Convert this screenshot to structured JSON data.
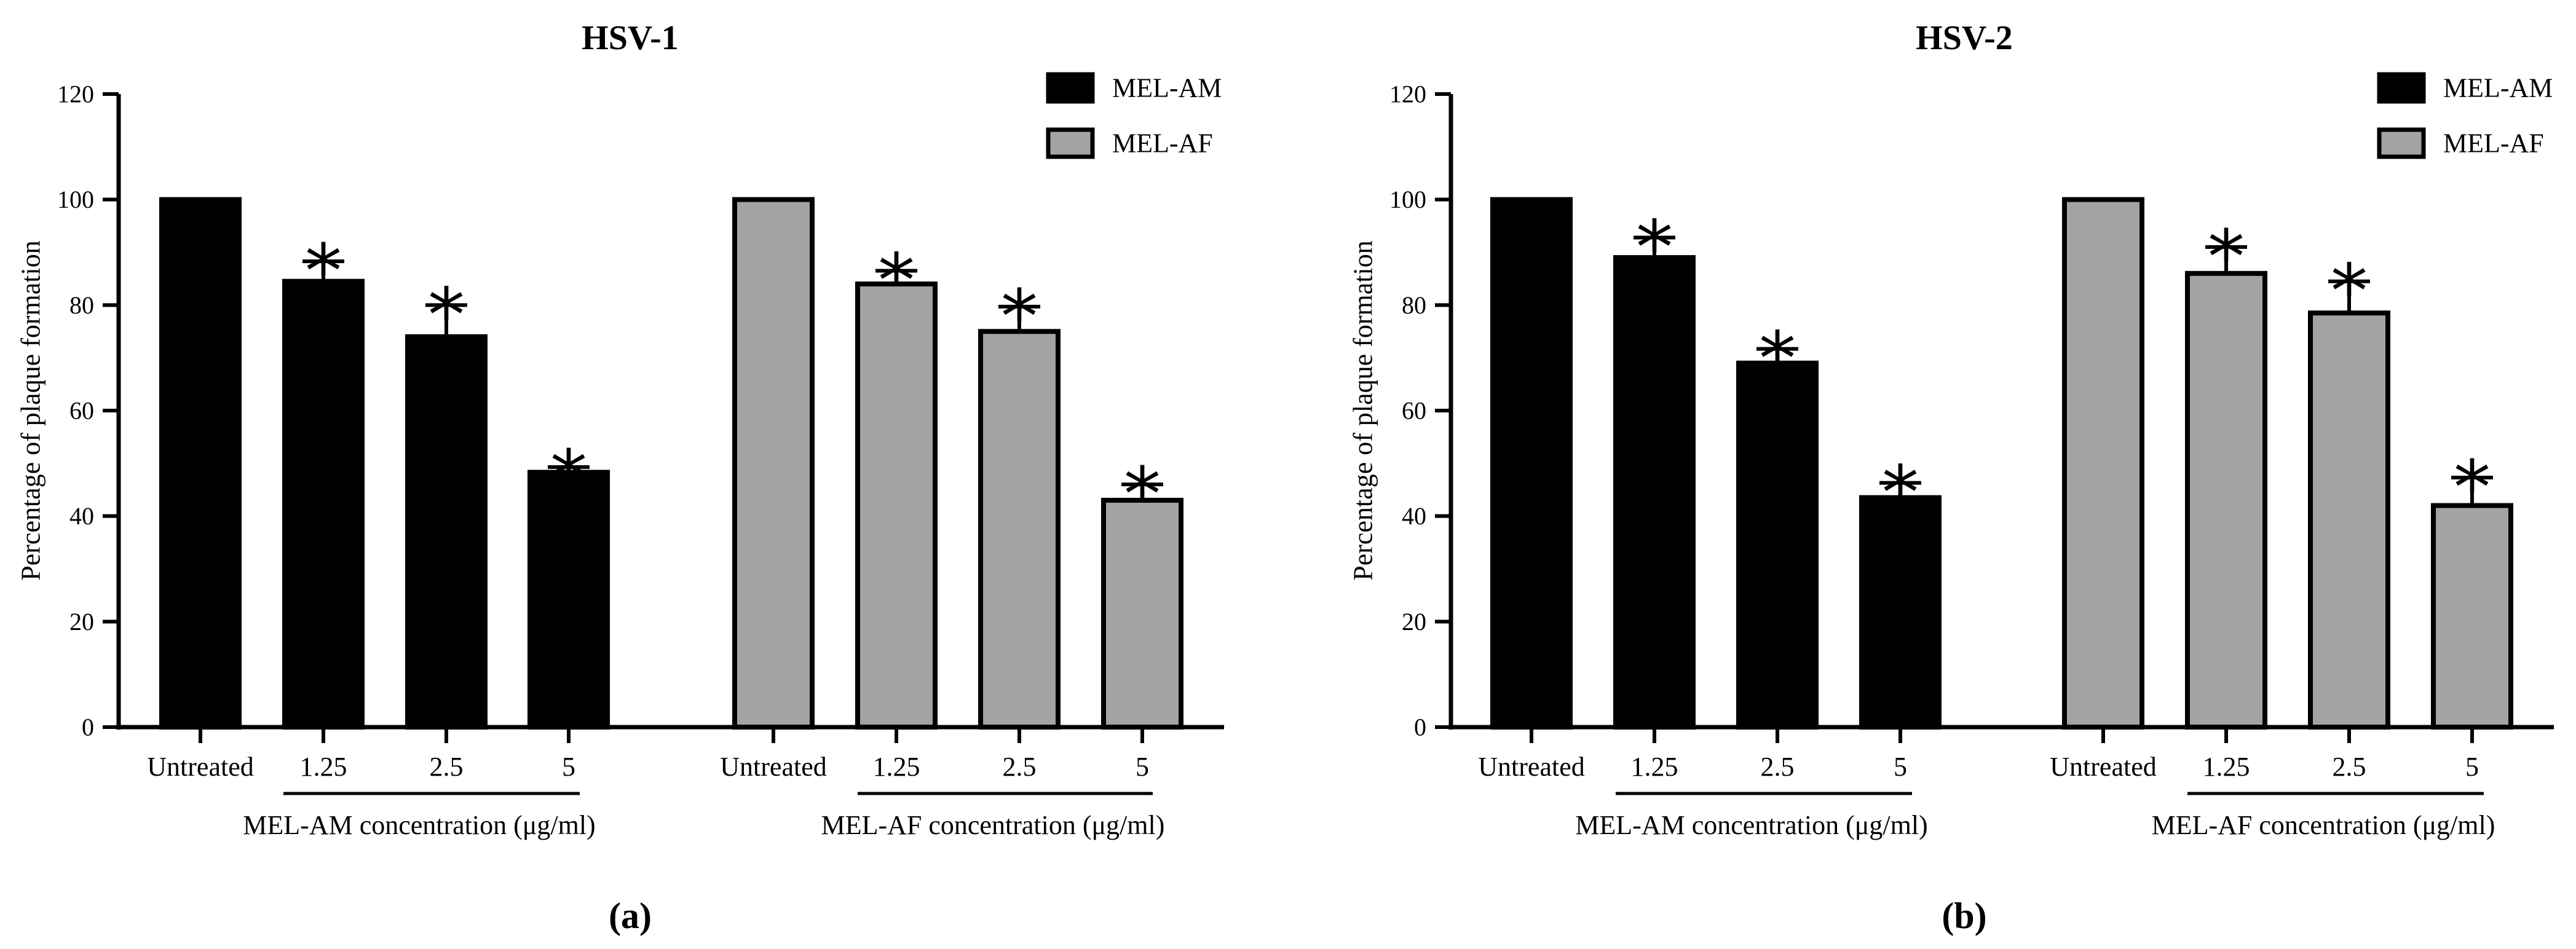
{
  "chart_data": [
    {
      "type": "bar",
      "title": "HSV-1",
      "panel_label": "(a)",
      "ylabel": "Percentage of plaque formation",
      "ylim": [
        0,
        120
      ],
      "yticks": [
        0,
        20,
        40,
        60,
        80,
        100,
        120
      ],
      "legend": {
        "position": "top-right",
        "entries": [
          {
            "name": "MEL-AM",
            "color": "#000000"
          },
          {
            "name": "MEL-AF",
            "color": "#a3a3a6"
          }
        ]
      },
      "groups": [
        {
          "name": "MEL-AM",
          "axis_label": "MEL-AM concentration (μg/ml)",
          "color": "#000000",
          "categories": [
            "Untreated",
            "1.25",
            "2.5",
            "5"
          ],
          "values": [
            100,
            84.5,
            74,
            48.3
          ],
          "errors": [
            0,
            3.8,
            6,
            1
          ],
          "significant": [
            false,
            true,
            true,
            true
          ]
        },
        {
          "name": "MEL-AF",
          "axis_label": "MEL-AF concentration (μg/ml)",
          "color": "#a3a3a6",
          "categories": [
            "Untreated",
            "1.25",
            "2.5",
            "5"
          ],
          "values": [
            100,
            84,
            75,
            43
          ],
          "errors": [
            0,
            2.5,
            4.7,
            3
          ],
          "significant": [
            false,
            true,
            true,
            true
          ]
        }
      ],
      "significance_marker": "*"
    },
    {
      "type": "bar",
      "title": "HSV-2",
      "panel_label": "(b)",
      "ylabel": "Percentage of plaque formation",
      "ylim": [
        0,
        120
      ],
      "yticks": [
        0,
        20,
        40,
        60,
        80,
        100,
        120
      ],
      "legend": {
        "position": "top-right",
        "entries": [
          {
            "name": "MEL-AM",
            "color": "#000000"
          },
          {
            "name": "MEL-AF",
            "color": "#a3a3a6"
          }
        ]
      },
      "groups": [
        {
          "name": "MEL-AM",
          "axis_label": "MEL-AM concentration (μg/ml)",
          "color": "#000000",
          "categories": [
            "Untreated",
            "1.25",
            "2.5",
            "5"
          ],
          "values": [
            100,
            89,
            69,
            43.5
          ],
          "errors": [
            0,
            3.8,
            2.7,
            2.8
          ],
          "significant": [
            false,
            true,
            true,
            true
          ]
        },
        {
          "name": "MEL-AF",
          "axis_label": "MEL-AF concentration (μg/ml)",
          "color": "#a3a3a6",
          "categories": [
            "Untreated",
            "1.25",
            "2.5",
            "5"
          ],
          "values": [
            100,
            86,
            78.5,
            42
          ],
          "errors": [
            0,
            5,
            6,
            5.3
          ],
          "significant": [
            false,
            true,
            true,
            true
          ]
        }
      ],
      "significance_marker": "*"
    }
  ]
}
